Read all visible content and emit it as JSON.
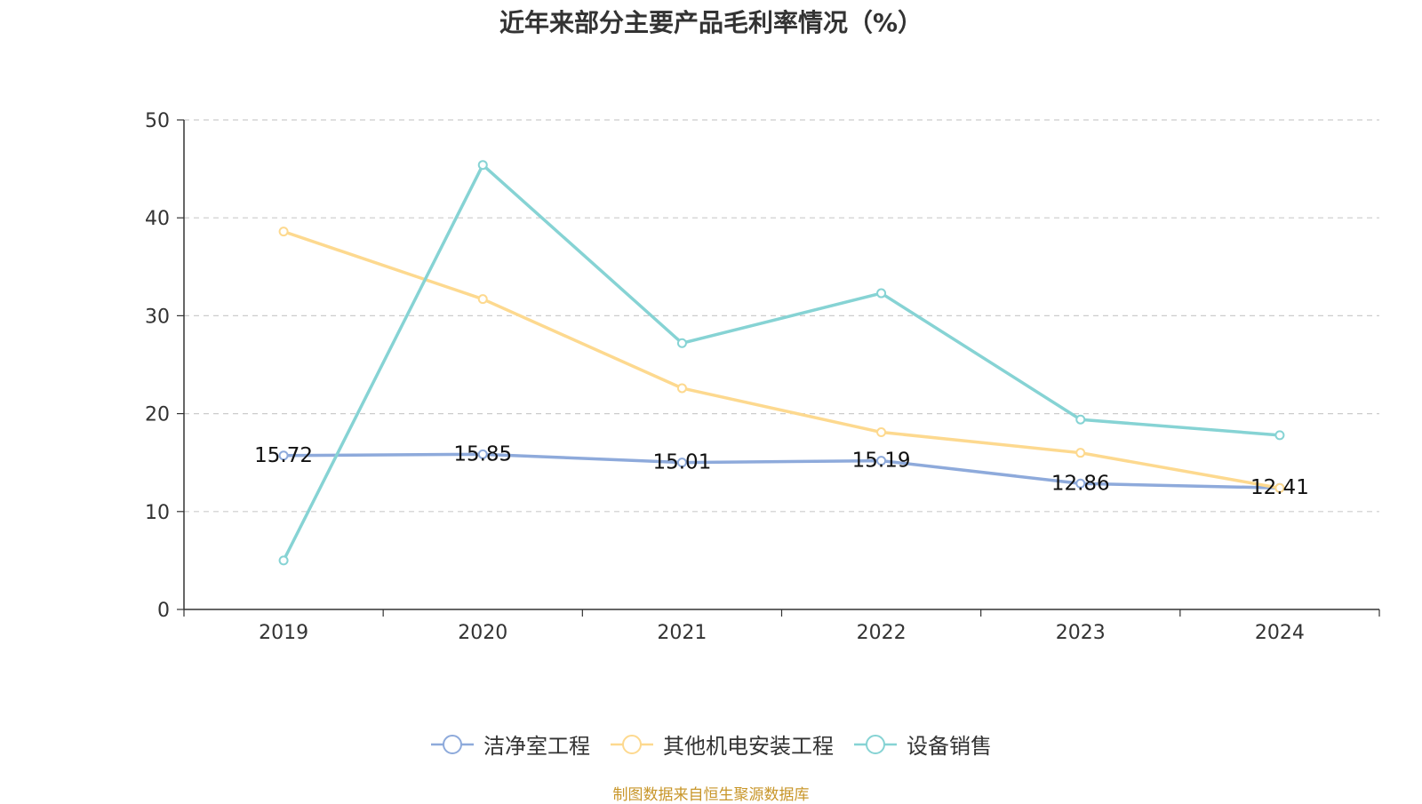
{
  "chart_data": {
    "type": "line",
    "title": "近年来部分主要产品毛利率情况（%）",
    "categories": [
      "2019",
      "2020",
      "2021",
      "2022",
      "2023",
      "2024"
    ],
    "ylim": [
      0,
      50
    ],
    "yticks": [
      0,
      10,
      20,
      30,
      40,
      50
    ],
    "grid": true,
    "legend_position": "bottom",
    "series": [
      {
        "name": "洁净室工程",
        "color": "#8eaadb",
        "values": [
          15.72,
          15.85,
          15.01,
          15.19,
          12.86,
          12.41
        ],
        "show_labels": true
      },
      {
        "name": "其他机电安装工程",
        "color": "#fdd98f",
        "values": [
          38.6,
          31.7,
          22.6,
          18.1,
          16.0,
          12.4
        ],
        "show_labels": false
      },
      {
        "name": "设备销售",
        "color": "#86d3d4",
        "values": [
          5.0,
          45.4,
          27.2,
          32.3,
          19.4,
          17.8
        ],
        "show_labels": false
      }
    ]
  },
  "source": "制图数据来自恒生聚源数据库"
}
